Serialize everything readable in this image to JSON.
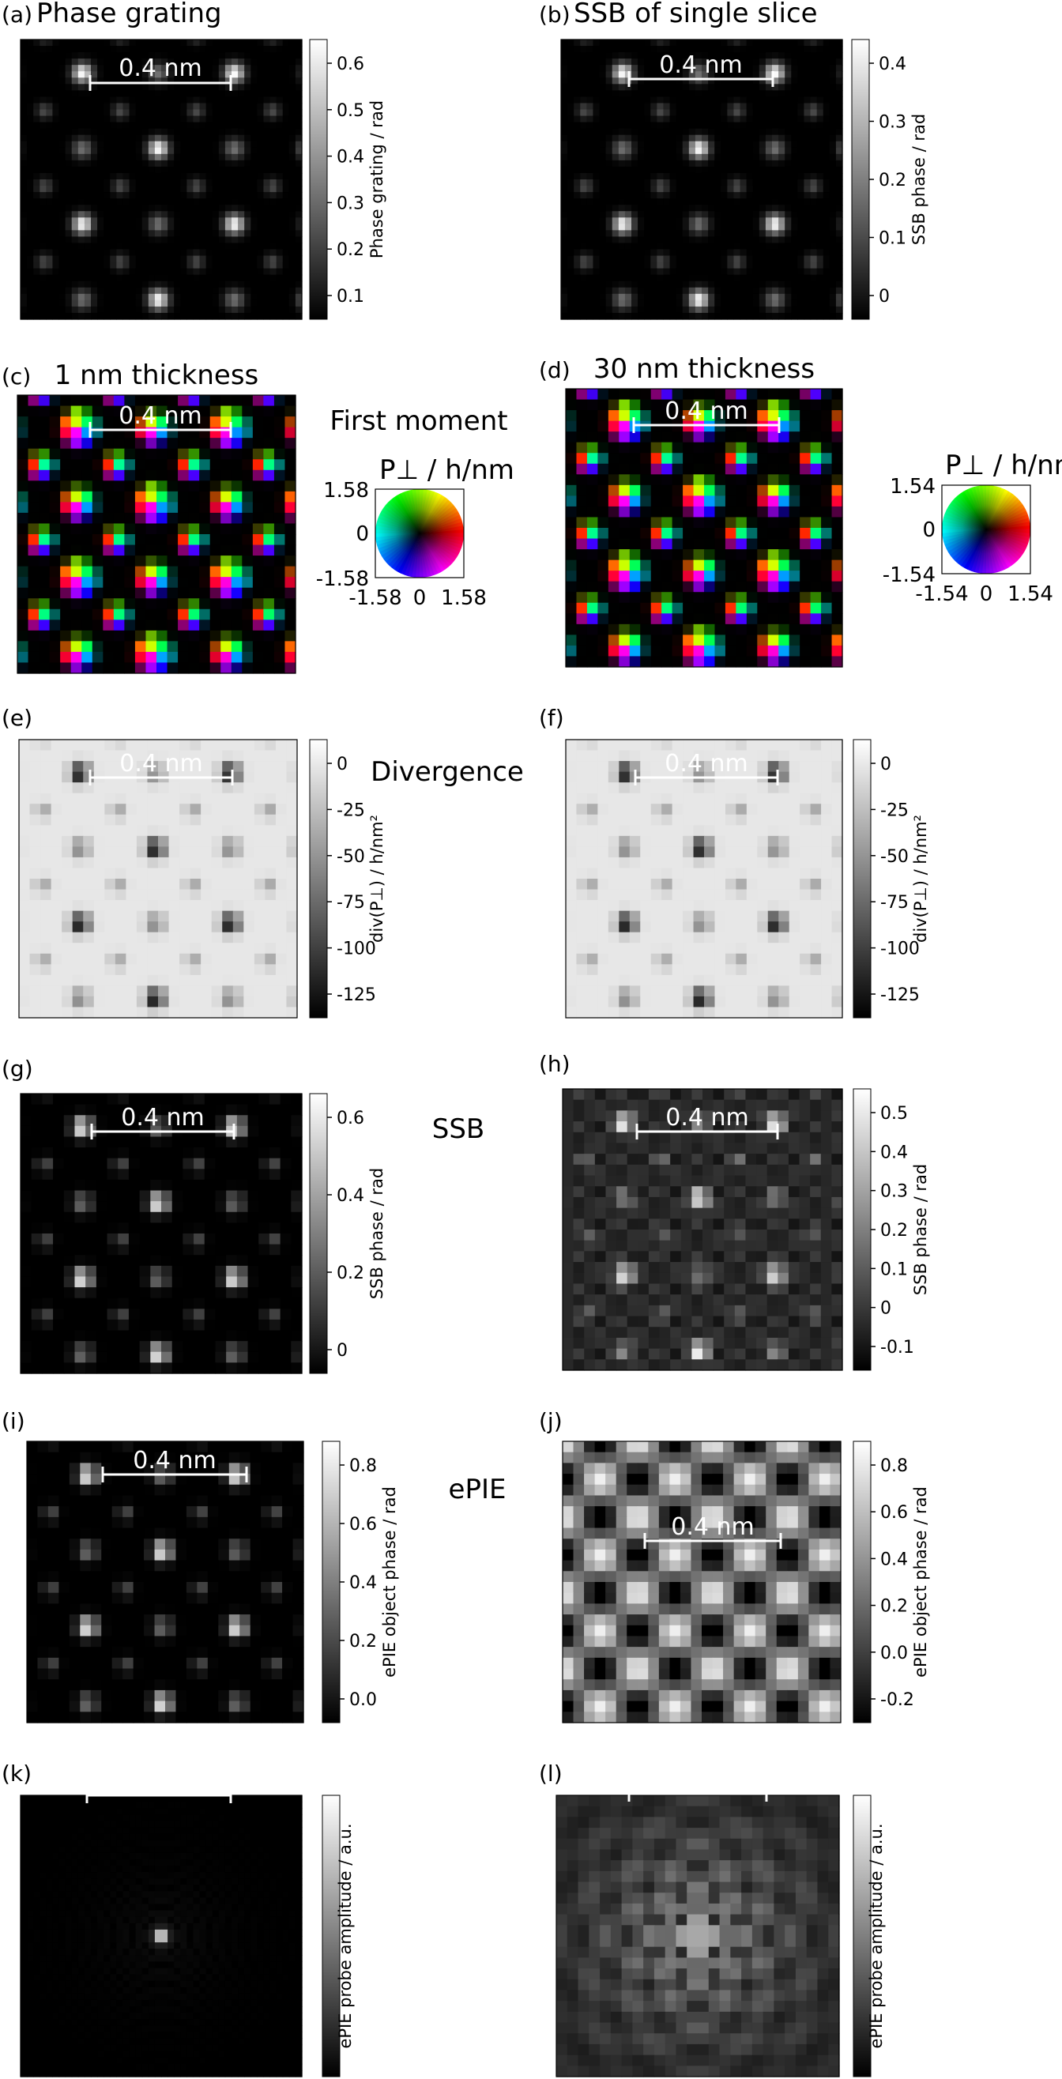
{
  "scale_label": "0.4 nm",
  "rows": {
    "r1": "",
    "r2": "First moment",
    "r3": "Divergence",
    "r4": "SSB",
    "r5": "ePIE",
    "r6": ""
  },
  "panels": [
    {
      "id": "a",
      "letter": "(a)",
      "title": "Phase grating",
      "type": "gray",
      "pattern": "lattice",
      "colorbar": {
        "label": "Phase grating / rad",
        "ticks": [
          "0.6",
          "0.5",
          "0.4",
          "0.3",
          "0.2",
          "0.1"
        ]
      }
    },
    {
      "id": "b",
      "letter": "(b)",
      "title": "SSB of single slice",
      "type": "gray",
      "pattern": "lattice_soft",
      "colorbar": {
        "label": "SSB phase / rad",
        "ticks": [
          "0.4",
          "0.3",
          "0.2",
          "0.1",
          "0"
        ]
      }
    },
    {
      "id": "c",
      "letter": "(c)",
      "title": "1 nm thickness",
      "type": "color",
      "pattern": "moment",
      "wheel": {
        "title": "P⊥ / h/nm",
        "ticks": [
          "1.58",
          "0",
          "-1.58"
        ],
        "xticks": [
          "-1.58",
          "0",
          "1.58"
        ]
      }
    },
    {
      "id": "d",
      "letter": "(d)",
      "title": "30 nm thickness",
      "type": "color",
      "pattern": "moment",
      "wheel": {
        "title": "P⊥ / h/nm",
        "ticks": [
          "1.54",
          "0",
          "-1.54"
        ],
        "xticks": [
          "-1.54",
          "0",
          "1.54"
        ]
      }
    },
    {
      "id": "e",
      "letter": "(e)",
      "title": "",
      "type": "gray",
      "pattern": "divergence",
      "colorbar": {
        "label": "div(P⊥) / h/nm²",
        "ticks": [
          "0",
          "-25",
          "-50",
          "-75",
          "-100",
          "-125"
        ]
      }
    },
    {
      "id": "f",
      "letter": "(f)",
      "title": "",
      "type": "gray",
      "pattern": "divergence",
      "colorbar": {
        "label": "div(P⊥) / h/nm²",
        "ticks": [
          "0",
          "-25",
          "-50",
          "-75",
          "-100",
          "-125"
        ]
      }
    },
    {
      "id": "g",
      "letter": "(g)",
      "title": "",
      "type": "gray",
      "pattern": "lattice_pix",
      "colorbar": {
        "label": "SSB phase / rad",
        "ticks": [
          "0.6",
          "0.4",
          "0.2",
          "0"
        ]
      }
    },
    {
      "id": "h",
      "letter": "(h)",
      "title": "",
      "type": "gray",
      "pattern": "noisy",
      "colorbar": {
        "label": "SSB phase / rad",
        "ticks": [
          "0.5",
          "0.4",
          "0.3",
          "0.2",
          "0.1",
          "0",
          "-0.1"
        ]
      }
    },
    {
      "id": "i",
      "letter": "(i)",
      "title": "",
      "type": "gray",
      "pattern": "lattice_pix",
      "colorbar": {
        "label": "ePIE object phase / rad",
        "ticks": [
          "0.8",
          "0.6",
          "0.4",
          "0.2",
          "0.0"
        ]
      }
    },
    {
      "id": "j",
      "letter": "(j)",
      "title": "",
      "type": "gray",
      "pattern": "blobs",
      "colorbar": {
        "label": "ePIE object phase / rad",
        "ticks": [
          "0.8",
          "0.6",
          "0.4",
          "0.2",
          "0.0",
          "-0.2"
        ]
      }
    },
    {
      "id": "k",
      "letter": "(k)",
      "title": "",
      "type": "gray",
      "pattern": "probe_small",
      "colorbar": {
        "label": "ePIE probe amplitude / a.u.",
        "ticks": []
      }
    },
    {
      "id": "l",
      "letter": "(l)",
      "title": "",
      "type": "gray",
      "pattern": "probe_large",
      "colorbar": {
        "label": "ePIE probe amplitude / a.u.",
        "ticks": []
      }
    }
  ]
}
